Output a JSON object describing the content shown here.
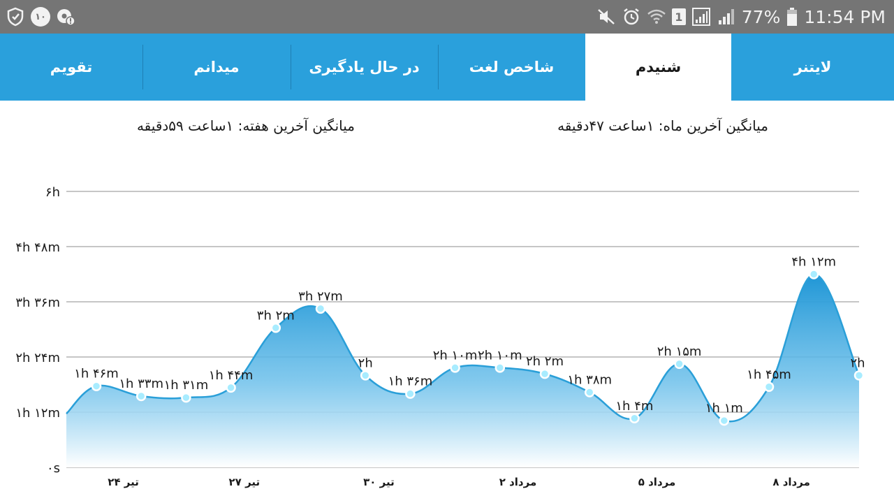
{
  "status_bar": {
    "left_icons": [
      "shield-icon",
      "notification-count-icon",
      "settings-alert-icon"
    ],
    "notification_count": "۱۰",
    "right_icons": [
      "mute-icon",
      "alarm-icon",
      "wifi-icon",
      "sim-icon",
      "signal-box-icon",
      "signal-icon",
      "battery-icon"
    ],
    "sim_label": "1",
    "battery": "77%",
    "time": "11:54 PM"
  },
  "tabs": [
    {
      "label": "لایتنر",
      "active": false
    },
    {
      "label": "شنیدم",
      "active": true
    },
    {
      "label": "شاخص لغت",
      "active": false
    },
    {
      "label": "در حال یادگیری",
      "active": false
    },
    {
      "label": "میدانم",
      "active": false
    },
    {
      "label": "تقویم",
      "active": false
    }
  ],
  "averages": {
    "month": "میانگین آخرین ماه: ۱ساعت  ۴۷دقیقه",
    "week": "میانگین آخرین هفته: ۱ساعت  ۵۹دقیقه"
  },
  "colors": {
    "accent": "#2aa0dc",
    "statusbar": "#757575",
    "line": "#2a9fd8",
    "point": "#a8ecff"
  },
  "chart_data": {
    "type": "area",
    "ylim": [
      0,
      360
    ],
    "y_ticks": [
      {
        "value": 360,
        "label": "۶h"
      },
      {
        "value": 288,
        "label": "۴h ۴۸m"
      },
      {
        "value": 216,
        "label": "۳h ۳۶m"
      },
      {
        "value": 144,
        "label": "۲h ۲۴m"
      },
      {
        "value": 72,
        "label": "۱h ۱۲m"
      },
      {
        "value": 0,
        "label": "۰s"
      }
    ],
    "x_ticks": [
      {
        "index": 0.6,
        "label": "۲۴ تیر"
      },
      {
        "index": 3.3,
        "label": "۲۷ تیر"
      },
      {
        "index": 6.3,
        "label": "۳۰ تیر"
      },
      {
        "index": 9.4,
        "label": "۲ مرداد"
      },
      {
        "index": 12.5,
        "label": "۵ مرداد"
      },
      {
        "index": 15.5,
        "label": "۸ مرداد"
      }
    ],
    "start_value": 70,
    "points": [
      {
        "value": 106,
        "label": "۱h ۴۶m"
      },
      {
        "value": 93,
        "label": "۱h ۳۳m"
      },
      {
        "value": 91,
        "label": "۱h ۳۱m"
      },
      {
        "value": 104,
        "label": "۱h ۴۴m"
      },
      {
        "value": 182,
        "label": "۳h ۲m"
      },
      {
        "value": 207,
        "label": "۳h ۲۷m"
      },
      {
        "value": 120,
        "label": "۲h"
      },
      {
        "value": 96,
        "label": "۱h ۳۶m"
      },
      {
        "value": 130,
        "label": "۲h ۱۰m"
      },
      {
        "value": 130,
        "label": "۲h ۱۰m"
      },
      {
        "value": 122,
        "label": "۲h ۲m"
      },
      {
        "value": 98,
        "label": "۱h ۳۸m"
      },
      {
        "value": 64,
        "label": "۱h ۴m"
      },
      {
        "value": 135,
        "label": "۲h ۱۵m"
      },
      {
        "value": 61,
        "label": "۱h ۱m"
      },
      {
        "value": 105,
        "label": "۱h ۴۵m"
      },
      {
        "value": 252,
        "label": "۴h ۱۲m"
      },
      {
        "value": 120,
        "label": "۲h"
      }
    ]
  }
}
